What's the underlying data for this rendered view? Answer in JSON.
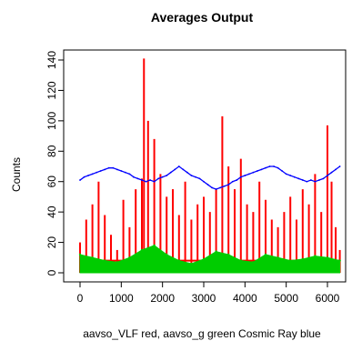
{
  "chart_data": {
    "type": "line",
    "title": "Averages Output",
    "xlabel": "aavso_VLF red, aavso_g green Cosmic Ray blue",
    "ylabel": "Counts",
    "xlim": [
      0,
      6300
    ],
    "ylim": [
      0,
      140
    ],
    "x_ticks": [
      "0",
      "1000",
      "2000",
      "3000",
      "4000",
      "5000",
      "6000"
    ],
    "y_ticks": [
      "0",
      "20",
      "40",
      "60",
      "80",
      "100",
      "120",
      "140"
    ],
    "grid": false,
    "legend": "none",
    "series": [
      {
        "name": "aavso_VLF",
        "color": "#ff0000",
        "style": "bars",
        "x": [
          0,
          150,
          300,
          450,
          600,
          750,
          900,
          1050,
          1200,
          1350,
          1500,
          1550,
          1650,
          1800,
          1950,
          2100,
          2250,
          2400,
          2550,
          2700,
          2850,
          3000,
          3150,
          3300,
          3450,
          3600,
          3750,
          3900,
          4050,
          4200,
          4350,
          4500,
          4650,
          4800,
          4950,
          5100,
          5250,
          5400,
          5550,
          5700,
          5850,
          6000,
          6100,
          6200,
          6300
        ],
        "values": [
          20,
          35,
          45,
          60,
          38,
          25,
          15,
          48,
          30,
          55,
          62,
          141,
          100,
          88,
          65,
          50,
          55,
          38,
          60,
          35,
          45,
          50,
          40,
          55,
          103,
          70,
          55,
          75,
          45,
          40,
          60,
          48,
          35,
          30,
          40,
          50,
          35,
          55,
          45,
          65,
          40,
          97,
          60,
          30,
          15
        ]
      },
      {
        "name": "aavso_g",
        "color": "#00cc00",
        "style": "band",
        "x": [
          0,
          300,
          600,
          900,
          1200,
          1500,
          1800,
          2100,
          2400,
          2700,
          3000,
          3300,
          3600,
          3900,
          4200,
          4500,
          4800,
          5100,
          5400,
          5700,
          6000,
          6300
        ],
        "values": [
          12,
          10,
          8,
          7,
          10,
          15,
          18,
          12,
          8,
          6,
          9,
          14,
          12,
          8,
          7,
          12,
          10,
          8,
          9,
          11,
          10,
          8
        ]
      },
      {
        "name": "Cosmic Ray",
        "color": "#0000ff",
        "style": "line",
        "x": [
          0,
          100,
          200,
          300,
          400,
          500,
          600,
          700,
          800,
          900,
          1000,
          1100,
          1200,
          1300,
          1400,
          1500,
          1600,
          1700,
          1800,
          1900,
          2000,
          2100,
          2200,
          2300,
          2400,
          2500,
          2600,
          2700,
          2800,
          2900,
          3000,
          3100,
          3200,
          3300,
          3400,
          3500,
          3600,
          3700,
          3800,
          3900,
          4000,
          4100,
          4200,
          4300,
          4400,
          4500,
          4600,
          4700,
          4800,
          4900,
          5000,
          5100,
          5200,
          5300,
          5400,
          5500,
          5600,
          5700,
          5800,
          5900,
          6000,
          6100,
          6200,
          6300
        ],
        "values": [
          61,
          63,
          64,
          65,
          66,
          67,
          68,
          69,
          69,
          68,
          67,
          66,
          65,
          63,
          62,
          61,
          60,
          61,
          60,
          62,
          63,
          64,
          66,
          68,
          70,
          68,
          66,
          64,
          63,
          62,
          60,
          58,
          56,
          55,
          56,
          57,
          58,
          60,
          61,
          63,
          64,
          65,
          66,
          67,
          68,
          69,
          70,
          70,
          69,
          67,
          65,
          64,
          63,
          62,
          61,
          60,
          61,
          60,
          61,
          62,
          64,
          66,
          68,
          70
        ]
      }
    ]
  }
}
